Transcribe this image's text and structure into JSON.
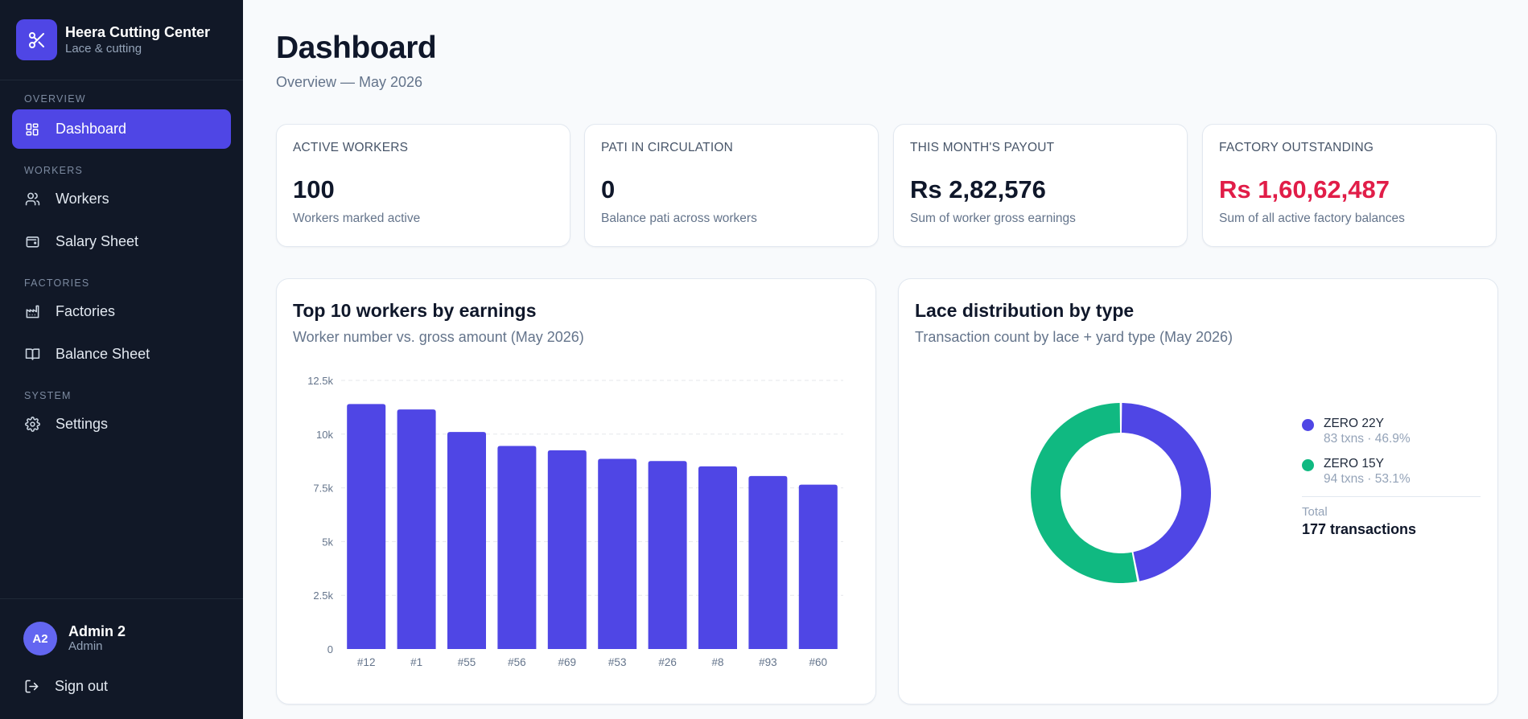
{
  "brand": {
    "name": "Heera Cutting Center",
    "subtitle": "Lace & cutting"
  },
  "sidebar": {
    "sections": [
      {
        "label": "Overview",
        "items": [
          {
            "label": "Dashboard",
            "icon": "dashboard-grid-icon",
            "active": true
          }
        ]
      },
      {
        "label": "Workers",
        "items": [
          {
            "label": "Workers",
            "icon": "users-icon"
          },
          {
            "label": "Salary Sheet",
            "icon": "wallet-icon"
          }
        ]
      },
      {
        "label": "Factories",
        "items": [
          {
            "label": "Factories",
            "icon": "factory-icon"
          },
          {
            "label": "Balance Sheet",
            "icon": "book-icon"
          }
        ]
      },
      {
        "label": "System",
        "items": [
          {
            "label": "Settings",
            "icon": "gear-icon"
          }
        ]
      }
    ],
    "user": {
      "initials": "A2",
      "name": "Admin 2",
      "role": "Admin"
    },
    "signout_label": "Sign out"
  },
  "header": {
    "title": "Dashboard",
    "subtitle": "Overview — May 2026"
  },
  "stats": [
    {
      "label": "Active workers",
      "value": "100",
      "desc": "Workers marked active"
    },
    {
      "label": "Pati in circulation",
      "value": "0",
      "desc": "Balance pati across workers"
    },
    {
      "label": "This month's payout",
      "value": "Rs 2,82,576",
      "desc": "Sum of worker gross earnings"
    },
    {
      "label": "Factory outstanding",
      "value": "Rs 1,60,62,487",
      "desc": "Sum of all active factory balances"
    }
  ],
  "colors": {
    "accent": "#4f46e5",
    "bar": "#4f46e5",
    "green": "#10b981",
    "danger": "#e11d48",
    "sidebar": "#111827"
  },
  "bar_card": {
    "title": "Top 10 workers by earnings",
    "subtitle": "Worker number vs. gross amount (May 2026)"
  },
  "donut_card": {
    "title": "Lace distribution by type",
    "subtitle": "Transaction count by lace + yard type (May 2026)",
    "total_label": "Total",
    "total_value": "177 transactions"
  },
  "chart_data": [
    {
      "type": "bar",
      "title": "Top 10 workers by earnings",
      "subtitle": "Worker number vs. gross amount (May 2026)",
      "categories": [
        "#12",
        "#1",
        "#55",
        "#56",
        "#69",
        "#53",
        "#26",
        "#8",
        "#93",
        "#60"
      ],
      "values": [
        11400,
        11150,
        10100,
        9450,
        9250,
        8850,
        8750,
        8500,
        8050,
        7650
      ],
      "ylim": [
        0,
        12500
      ],
      "yticks": [
        0,
        2500,
        5000,
        7500,
        10000,
        12500
      ],
      "ytick_labels": [
        "0",
        "2.5k",
        "5k",
        "7.5k",
        "10k",
        "12.5k"
      ],
      "grid": true,
      "legend": "none"
    },
    {
      "type": "pie",
      "variant": "donut",
      "title": "Lace distribution by type",
      "subtitle": "Transaction count by lace + yard type (May 2026)",
      "slices": [
        {
          "name": "ZERO 22Y",
          "value": 83,
          "meta": "83 txns · 46.9%",
          "color": "#4f46e5"
        },
        {
          "name": "ZERO 15Y",
          "value": 94,
          "meta": "94 txns · 53.1%",
          "color": "#10b981"
        }
      ],
      "legend": "right"
    }
  ]
}
